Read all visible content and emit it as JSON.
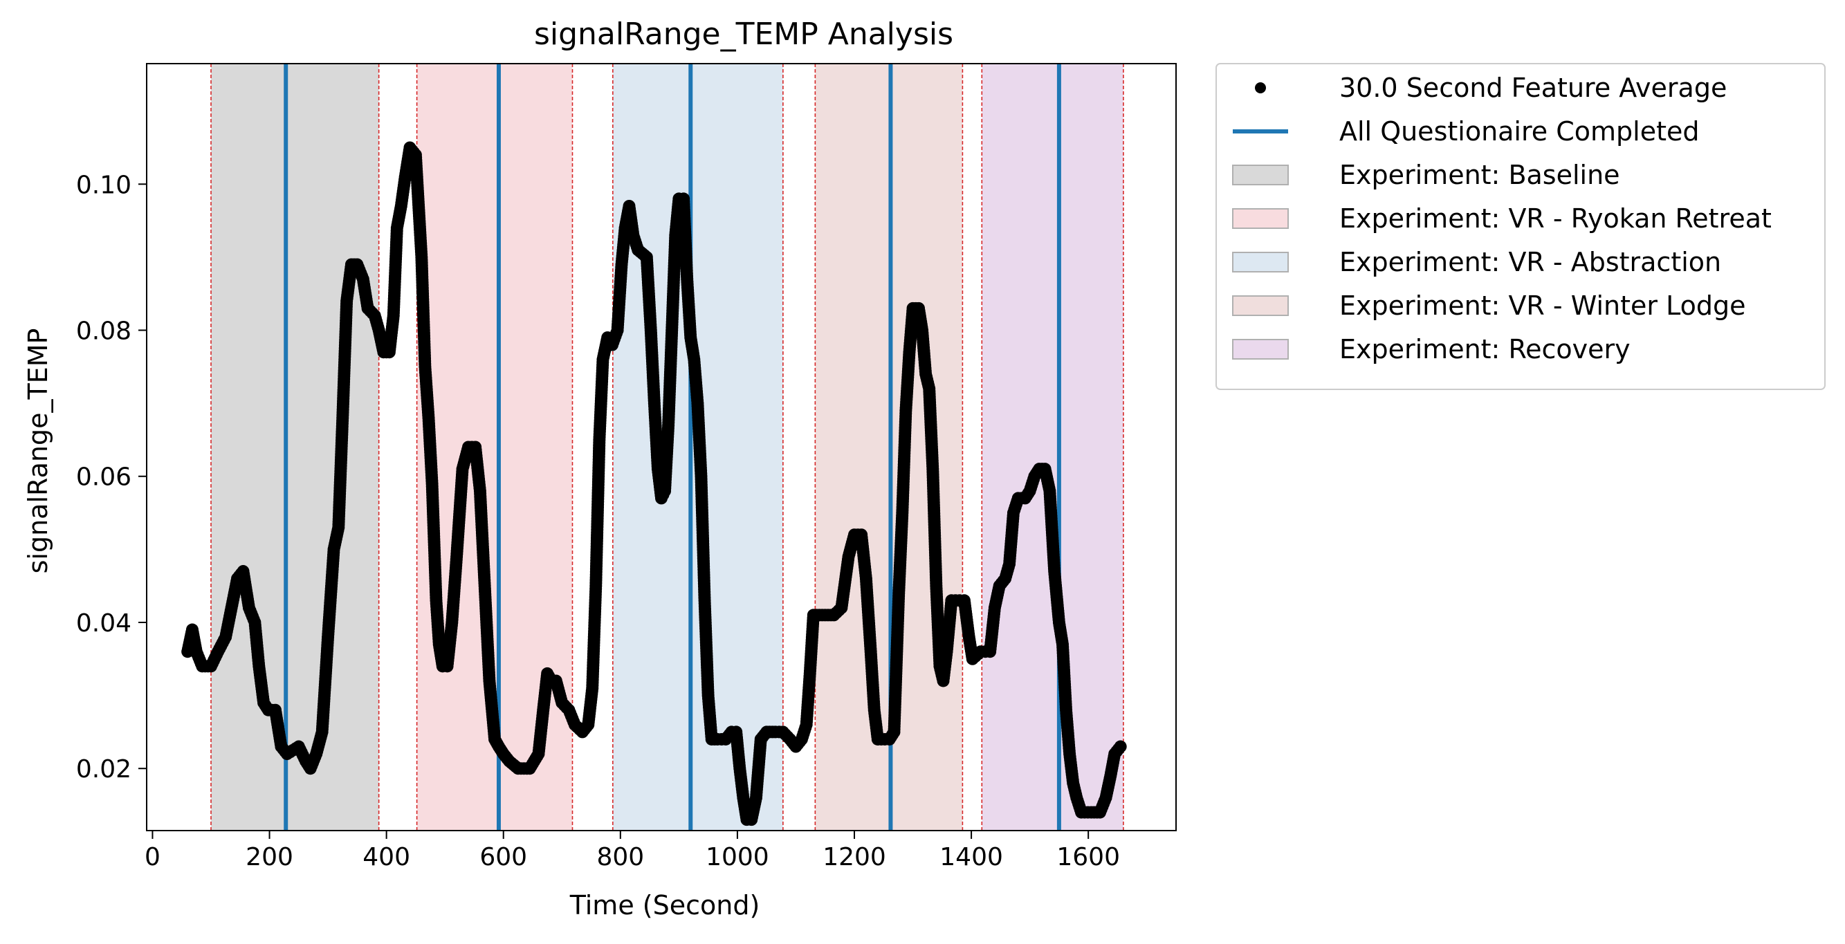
{
  "chart_data": {
    "type": "scatter",
    "title": "signalRange_TEMP Analysis",
    "xlabel": "Time (Second)",
    "ylabel": "signalRange_TEMP",
    "xlim": [
      -10,
      1750
    ],
    "ylim": [
      0.0115,
      0.1165
    ],
    "xticks": [
      0,
      200,
      400,
      600,
      800,
      1000,
      1200,
      1400,
      1600
    ],
    "yticks": [
      0.02,
      0.04,
      0.06,
      0.08,
      0.1
    ],
    "xtick_labels": [
      "0",
      "200",
      "400",
      "600",
      "800",
      "1000",
      "1200",
      "1400",
      "1600"
    ],
    "ytick_labels": [
      "0.02",
      "0.04",
      "0.06",
      "0.08",
      "0.10"
    ],
    "grid": false,
    "legend_position": "outside-right-top",
    "regions": [
      {
        "label": "Experiment: Baseline",
        "start": 100,
        "end": 387,
        "color": "#d9d9d9"
      },
      {
        "label": "Experiment: VR - Ryokan Retreat",
        "start": 452,
        "end": 718,
        "color": "#f8dcdf"
      },
      {
        "label": "Experiment: VR - Abstraction",
        "start": 787,
        "end": 1078,
        "color": "#dde8f2"
      },
      {
        "label": "Experiment: VR - Winter Lodge",
        "start": 1133,
        "end": 1385,
        "color": "#f0dedd"
      },
      {
        "label": "Experiment: Recovery",
        "start": 1418,
        "end": 1660,
        "color": "#ead9ed"
      }
    ],
    "questionnaire_lines": [
      228,
      592,
      920,
      1262,
      1550
    ],
    "series": [
      {
        "name": "30.0 Second Feature Average",
        "marker": "dot",
        "color": "#000000",
        "points": [
          [
            60,
            0.036
          ],
          [
            68,
            0.039
          ],
          [
            75,
            0.036
          ],
          [
            85,
            0.034
          ],
          [
            100,
            0.034
          ],
          [
            112,
            0.036
          ],
          [
            125,
            0.038
          ],
          [
            135,
            0.042
          ],
          [
            145,
            0.046
          ],
          [
            155,
            0.047
          ],
          [
            165,
            0.042
          ],
          [
            175,
            0.04
          ],
          [
            182,
            0.034
          ],
          [
            190,
            0.029
          ],
          [
            198,
            0.028
          ],
          [
            210,
            0.028
          ],
          [
            220,
            0.023
          ],
          [
            230,
            0.022
          ],
          [
            250,
            0.023
          ],
          [
            262,
            0.021
          ],
          [
            270,
            0.02
          ],
          [
            280,
            0.022
          ],
          [
            290,
            0.025
          ],
          [
            300,
            0.038
          ],
          [
            310,
            0.05
          ],
          [
            318,
            0.053
          ],
          [
            325,
            0.068
          ],
          [
            332,
            0.084
          ],
          [
            340,
            0.089
          ],
          [
            350,
            0.089
          ],
          [
            360,
            0.087
          ],
          [
            368,
            0.083
          ],
          [
            380,
            0.082
          ],
          [
            387,
            0.08
          ],
          [
            395,
            0.077
          ],
          [
            405,
            0.077
          ],
          [
            412,
            0.082
          ],
          [
            418,
            0.094
          ],
          [
            425,
            0.097
          ],
          [
            432,
            0.101
          ],
          [
            440,
            0.105
          ],
          [
            450,
            0.104
          ],
          [
            460,
            0.09
          ],
          [
            466,
            0.075
          ],
          [
            472,
            0.068
          ],
          [
            478,
            0.059
          ],
          [
            485,
            0.043
          ],
          [
            490,
            0.037
          ],
          [
            496,
            0.034
          ],
          [
            504,
            0.034
          ],
          [
            512,
            0.04
          ],
          [
            520,
            0.049
          ],
          [
            530,
            0.061
          ],
          [
            540,
            0.064
          ],
          [
            552,
            0.064
          ],
          [
            560,
            0.058
          ],
          [
            568,
            0.045
          ],
          [
            576,
            0.032
          ],
          [
            585,
            0.024
          ],
          [
            592,
            0.023
          ],
          [
            600,
            0.022
          ],
          [
            610,
            0.021
          ],
          [
            625,
            0.02
          ],
          [
            645,
            0.02
          ],
          [
            660,
            0.022
          ],
          [
            668,
            0.028
          ],
          [
            675,
            0.033
          ],
          [
            682,
            0.032
          ],
          [
            690,
            0.032
          ],
          [
            700,
            0.029
          ],
          [
            712,
            0.028
          ],
          [
            722,
            0.026
          ],
          [
            735,
            0.025
          ],
          [
            745,
            0.026
          ],
          [
            752,
            0.031
          ],
          [
            758,
            0.045
          ],
          [
            764,
            0.065
          ],
          [
            770,
            0.076
          ],
          [
            778,
            0.079
          ],
          [
            786,
            0.078
          ],
          [
            795,
            0.08
          ],
          [
            802,
            0.089
          ],
          [
            808,
            0.094
          ],
          [
            815,
            0.097
          ],
          [
            822,
            0.093
          ],
          [
            830,
            0.091
          ],
          [
            845,
            0.09
          ],
          [
            852,
            0.08
          ],
          [
            858,
            0.07
          ],
          [
            864,
            0.061
          ],
          [
            870,
            0.057
          ],
          [
            876,
            0.058
          ],
          [
            882,
            0.067
          ],
          [
            888,
            0.08
          ],
          [
            894,
            0.093
          ],
          [
            900,
            0.098
          ],
          [
            908,
            0.098
          ],
          [
            914,
            0.087
          ],
          [
            920,
            0.079
          ],
          [
            926,
            0.076
          ],
          [
            932,
            0.07
          ],
          [
            938,
            0.06
          ],
          [
            944,
            0.043
          ],
          [
            950,
            0.03
          ],
          [
            956,
            0.024
          ],
          [
            966,
            0.024
          ],
          [
            980,
            0.024
          ],
          [
            990,
            0.025
          ],
          [
            998,
            0.025
          ],
          [
            1004,
            0.02
          ],
          [
            1010,
            0.016
          ],
          [
            1016,
            0.013
          ],
          [
            1024,
            0.013
          ],
          [
            1032,
            0.016
          ],
          [
            1040,
            0.024
          ],
          [
            1050,
            0.025
          ],
          [
            1065,
            0.025
          ],
          [
            1078,
            0.025
          ],
          [
            1090,
            0.024
          ],
          [
            1100,
            0.023
          ],
          [
            1110,
            0.024
          ],
          [
            1118,
            0.026
          ],
          [
            1124,
            0.033
          ],
          [
            1130,
            0.041
          ],
          [
            1145,
            0.041
          ],
          [
            1165,
            0.041
          ],
          [
            1178,
            0.042
          ],
          [
            1190,
            0.049
          ],
          [
            1200,
            0.052
          ],
          [
            1212,
            0.052
          ],
          [
            1220,
            0.046
          ],
          [
            1228,
            0.036
          ],
          [
            1234,
            0.028
          ],
          [
            1240,
            0.024
          ],
          [
            1252,
            0.024
          ],
          [
            1260,
            0.024
          ],
          [
            1268,
            0.025
          ],
          [
            1276,
            0.044
          ],
          [
            1282,
            0.055
          ],
          [
            1288,
            0.069
          ],
          [
            1294,
            0.077
          ],
          [
            1300,
            0.083
          ],
          [
            1310,
            0.083
          ],
          [
            1316,
            0.08
          ],
          [
            1322,
            0.074
          ],
          [
            1328,
            0.072
          ],
          [
            1334,
            0.061
          ],
          [
            1340,
            0.045
          ],
          [
            1346,
            0.034
          ],
          [
            1352,
            0.032
          ],
          [
            1358,
            0.036
          ],
          [
            1366,
            0.043
          ],
          [
            1380,
            0.043
          ],
          [
            1388,
            0.043
          ],
          [
            1396,
            0.038
          ],
          [
            1402,
            0.035
          ],
          [
            1416,
            0.036
          ],
          [
            1424,
            0.036
          ],
          [
            1432,
            0.036
          ],
          [
            1440,
            0.042
          ],
          [
            1448,
            0.045
          ],
          [
            1458,
            0.046
          ],
          [
            1465,
            0.048
          ],
          [
            1472,
            0.055
          ],
          [
            1480,
            0.057
          ],
          [
            1492,
            0.057
          ],
          [
            1500,
            0.058
          ],
          [
            1508,
            0.06
          ],
          [
            1516,
            0.061
          ],
          [
            1526,
            0.061
          ],
          [
            1534,
            0.058
          ],
          [
            1542,
            0.047
          ],
          [
            1550,
            0.04
          ],
          [
            1556,
            0.037
          ],
          [
            1562,
            0.028
          ],
          [
            1568,
            0.022
          ],
          [
            1574,
            0.018
          ],
          [
            1580,
            0.016
          ],
          [
            1588,
            0.014
          ],
          [
            1605,
            0.014
          ],
          [
            1620,
            0.014
          ],
          [
            1630,
            0.016
          ],
          [
            1638,
            0.019
          ],
          [
            1645,
            0.022
          ],
          [
            1655,
            0.023
          ]
        ]
      }
    ],
    "reference_series": {
      "name": "All Questionaire Completed",
      "color": "#1f77b4"
    }
  },
  "legend": {
    "items": [
      {
        "label": "30.0 Second Feature Average",
        "kind": "dot",
        "color": "#000000"
      },
      {
        "label": "All Questionaire Completed",
        "kind": "line",
        "color": "#1f77b4"
      },
      {
        "label": "Experiment: Baseline",
        "kind": "patch",
        "color": "#d9d9d9"
      },
      {
        "label": "Experiment: VR - Ryokan Retreat",
        "kind": "patch",
        "color": "#f8dcdf"
      },
      {
        "label": "Experiment: VR - Abstraction",
        "kind": "patch",
        "color": "#dde8f2"
      },
      {
        "label": "Experiment: VR - Winter Lodge",
        "kind": "patch",
        "color": "#f0dedd"
      },
      {
        "label": "Experiment: Recovery",
        "kind": "patch",
        "color": "#ead9ed"
      }
    ]
  }
}
